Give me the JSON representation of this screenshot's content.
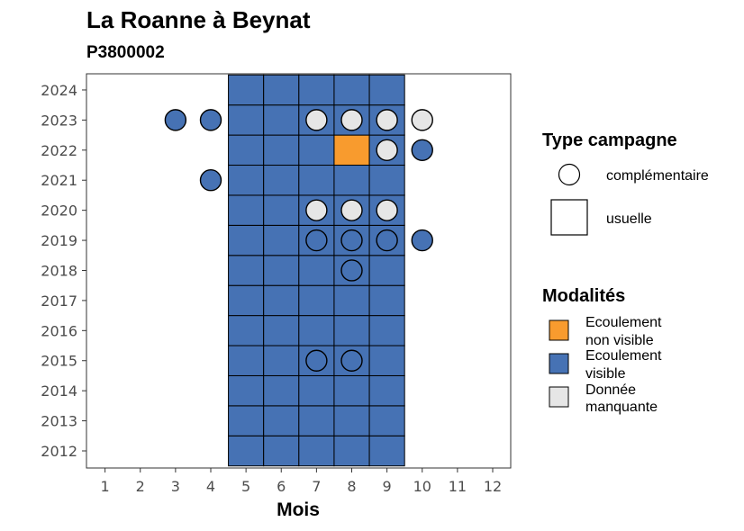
{
  "chart_data": {
    "type": "heatmap",
    "title": "La Roanne à Beynat",
    "subtitle": "P3800002",
    "xlabel": "Mois",
    "ylabel": "",
    "x_ticks": [
      1,
      2,
      3,
      4,
      5,
      6,
      7,
      8,
      9,
      10,
      11,
      12
    ],
    "y_ticks": [
      2012,
      2013,
      2014,
      2015,
      2016,
      2017,
      2018,
      2019,
      2020,
      2021,
      2022,
      2023,
      2024
    ],
    "xlim": [
      0.5,
      12.5
    ],
    "ylim": [
      2011.5,
      2024.5
    ],
    "grid": false,
    "legend_position": "right",
    "colors": {
      "Ecoulement non visible": "#F89B2E",
      "Ecoulement visible": "#4672B4",
      "Donnée manquante": "#E6E6E6"
    },
    "legend": {
      "type_title": "Type campagne",
      "type_entries": [
        {
          "label": "complémentaire",
          "shape": "circle"
        },
        {
          "label": "usuelle",
          "shape": "square"
        }
      ],
      "mod_title": "Modalités",
      "mod_entries": [
        {
          "lines": [
            "Ecoulement",
            "non visible"
          ],
          "key": "Ecoulement non visible"
        },
        {
          "lines": [
            "Ecoulement",
            "visible"
          ],
          "key": "Ecoulement visible"
        },
        {
          "lines": [
            "Donnée",
            "manquante"
          ],
          "key": "Donnée manquante"
        }
      ]
    },
    "usuelle": {
      "months": [
        5,
        6,
        7,
        8,
        9
      ],
      "years": [
        2012,
        2013,
        2014,
        2015,
        2016,
        2017,
        2018,
        2019,
        2020,
        2021,
        2022,
        2023,
        2024
      ],
      "default": "Ecoulement visible",
      "exceptions": [
        {
          "month": 8,
          "year": 2022,
          "modalite": "Ecoulement non visible"
        }
      ]
    },
    "complementaire": [
      {
        "month": 3,
        "year": 2023,
        "modalite": "Ecoulement visible"
      },
      {
        "month": 4,
        "year": 2023,
        "modalite": "Ecoulement visible"
      },
      {
        "month": 7,
        "year": 2023,
        "modalite": "Donnée manquante"
      },
      {
        "month": 8,
        "year": 2023,
        "modalite": "Donnée manquante"
      },
      {
        "month": 9,
        "year": 2023,
        "modalite": "Donnée manquante"
      },
      {
        "month": 10,
        "year": 2023,
        "modalite": "Donnée manquante"
      },
      {
        "month": 9,
        "year": 2022,
        "modalite": "Donnée manquante"
      },
      {
        "month": 10,
        "year": 2022,
        "modalite": "Ecoulement visible"
      },
      {
        "month": 4,
        "year": 2021,
        "modalite": "Ecoulement visible"
      },
      {
        "month": 7,
        "year": 2020,
        "modalite": "Donnée manquante"
      },
      {
        "month": 8,
        "year": 2020,
        "modalite": "Donnée manquante"
      },
      {
        "month": 9,
        "year": 2020,
        "modalite": "Donnée manquante"
      },
      {
        "month": 7,
        "year": 2019,
        "modalite": "Ecoulement visible"
      },
      {
        "month": 8,
        "year": 2019,
        "modalite": "Ecoulement visible"
      },
      {
        "month": 9,
        "year": 2019,
        "modalite": "Ecoulement visible"
      },
      {
        "month": 10,
        "year": 2019,
        "modalite": "Ecoulement visible"
      },
      {
        "month": 8,
        "year": 2018,
        "modalite": "Ecoulement visible"
      },
      {
        "month": 7,
        "year": 2015,
        "modalite": "Ecoulement visible"
      },
      {
        "month": 8,
        "year": 2015,
        "modalite": "Ecoulement visible"
      }
    ]
  }
}
